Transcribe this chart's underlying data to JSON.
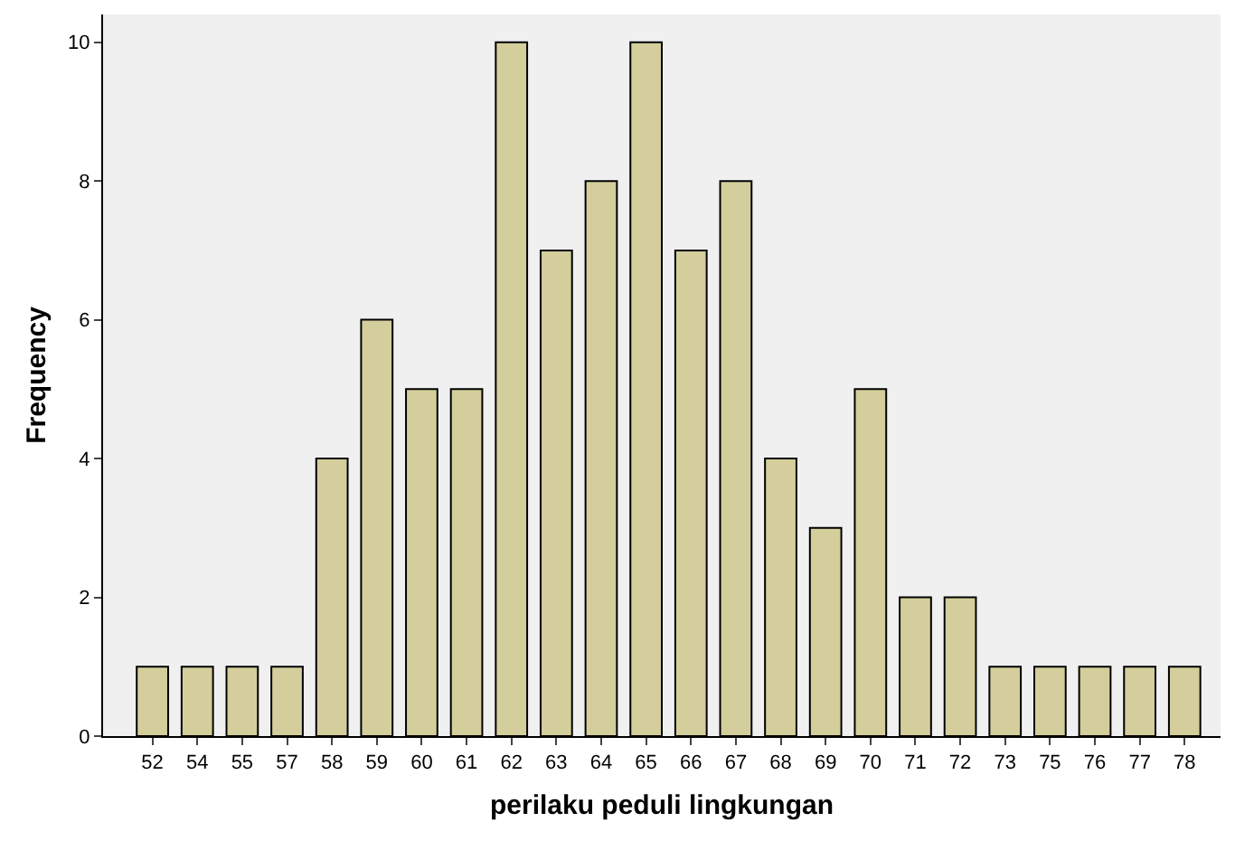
{
  "chart_data": {
    "type": "bar",
    "xlabel": "perilaku peduli lingkungan",
    "ylabel": "Frequency",
    "categories": [
      "52",
      "54",
      "55",
      "57",
      "58",
      "59",
      "60",
      "61",
      "62",
      "63",
      "64",
      "65",
      "66",
      "67",
      "68",
      "69",
      "70",
      "71",
      "72",
      "73",
      "75",
      "76",
      "77",
      "78"
    ],
    "values": [
      1,
      1,
      1,
      1,
      4,
      6,
      5,
      5,
      10,
      7,
      8,
      10,
      7,
      8,
      4,
      3,
      5,
      2,
      2,
      1,
      1,
      1,
      1,
      1
    ],
    "color": "#d3ce9b",
    "ylim": [
      0,
      10.4
    ],
    "yticks": [
      0,
      2,
      4,
      6,
      8,
      10
    ]
  }
}
